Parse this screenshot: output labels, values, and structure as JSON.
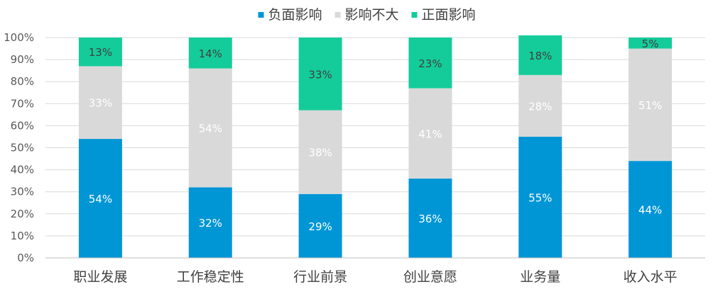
{
  "chart_data": {
    "type": "bar",
    "stacked": true,
    "percent": true,
    "categories": [
      "职业发展",
      "工作稳定性",
      "行业前景",
      "创业意愿",
      "业务量",
      "收入水平"
    ],
    "series": [
      {
        "name": "负面影响",
        "color": "#0096D6",
        "values": [
          54,
          32,
          29,
          36,
          55,
          44
        ],
        "labels": [
          "54%",
          "32%",
          "29%",
          "36%",
          "55%",
          "44%"
        ]
      },
      {
        "name": "影响不大",
        "color": "#D9D9D9",
        "values": [
          33,
          54,
          38,
          41,
          28,
          51
        ],
        "labels": [
          "33%",
          "54%",
          "38%",
          "41%",
          "28%",
          "51%"
        ]
      },
      {
        "name": "正面影响",
        "color": "#14CC9A",
        "values": [
          13,
          14,
          33,
          23,
          18,
          5
        ],
        "labels": [
          "13%",
          "14%",
          "33%",
          "23%",
          "18%",
          "5%"
        ]
      }
    ],
    "yticks": [
      "0%",
      "10%",
      "20%",
      "30%",
      "40%",
      "50%",
      "60%",
      "70%",
      "80%",
      "90%",
      "100%"
    ],
    "ylim": [
      0,
      100
    ],
    "grid": true,
    "legend_position": "top-center",
    "title": "",
    "xlabel": "",
    "ylabel": ""
  }
}
